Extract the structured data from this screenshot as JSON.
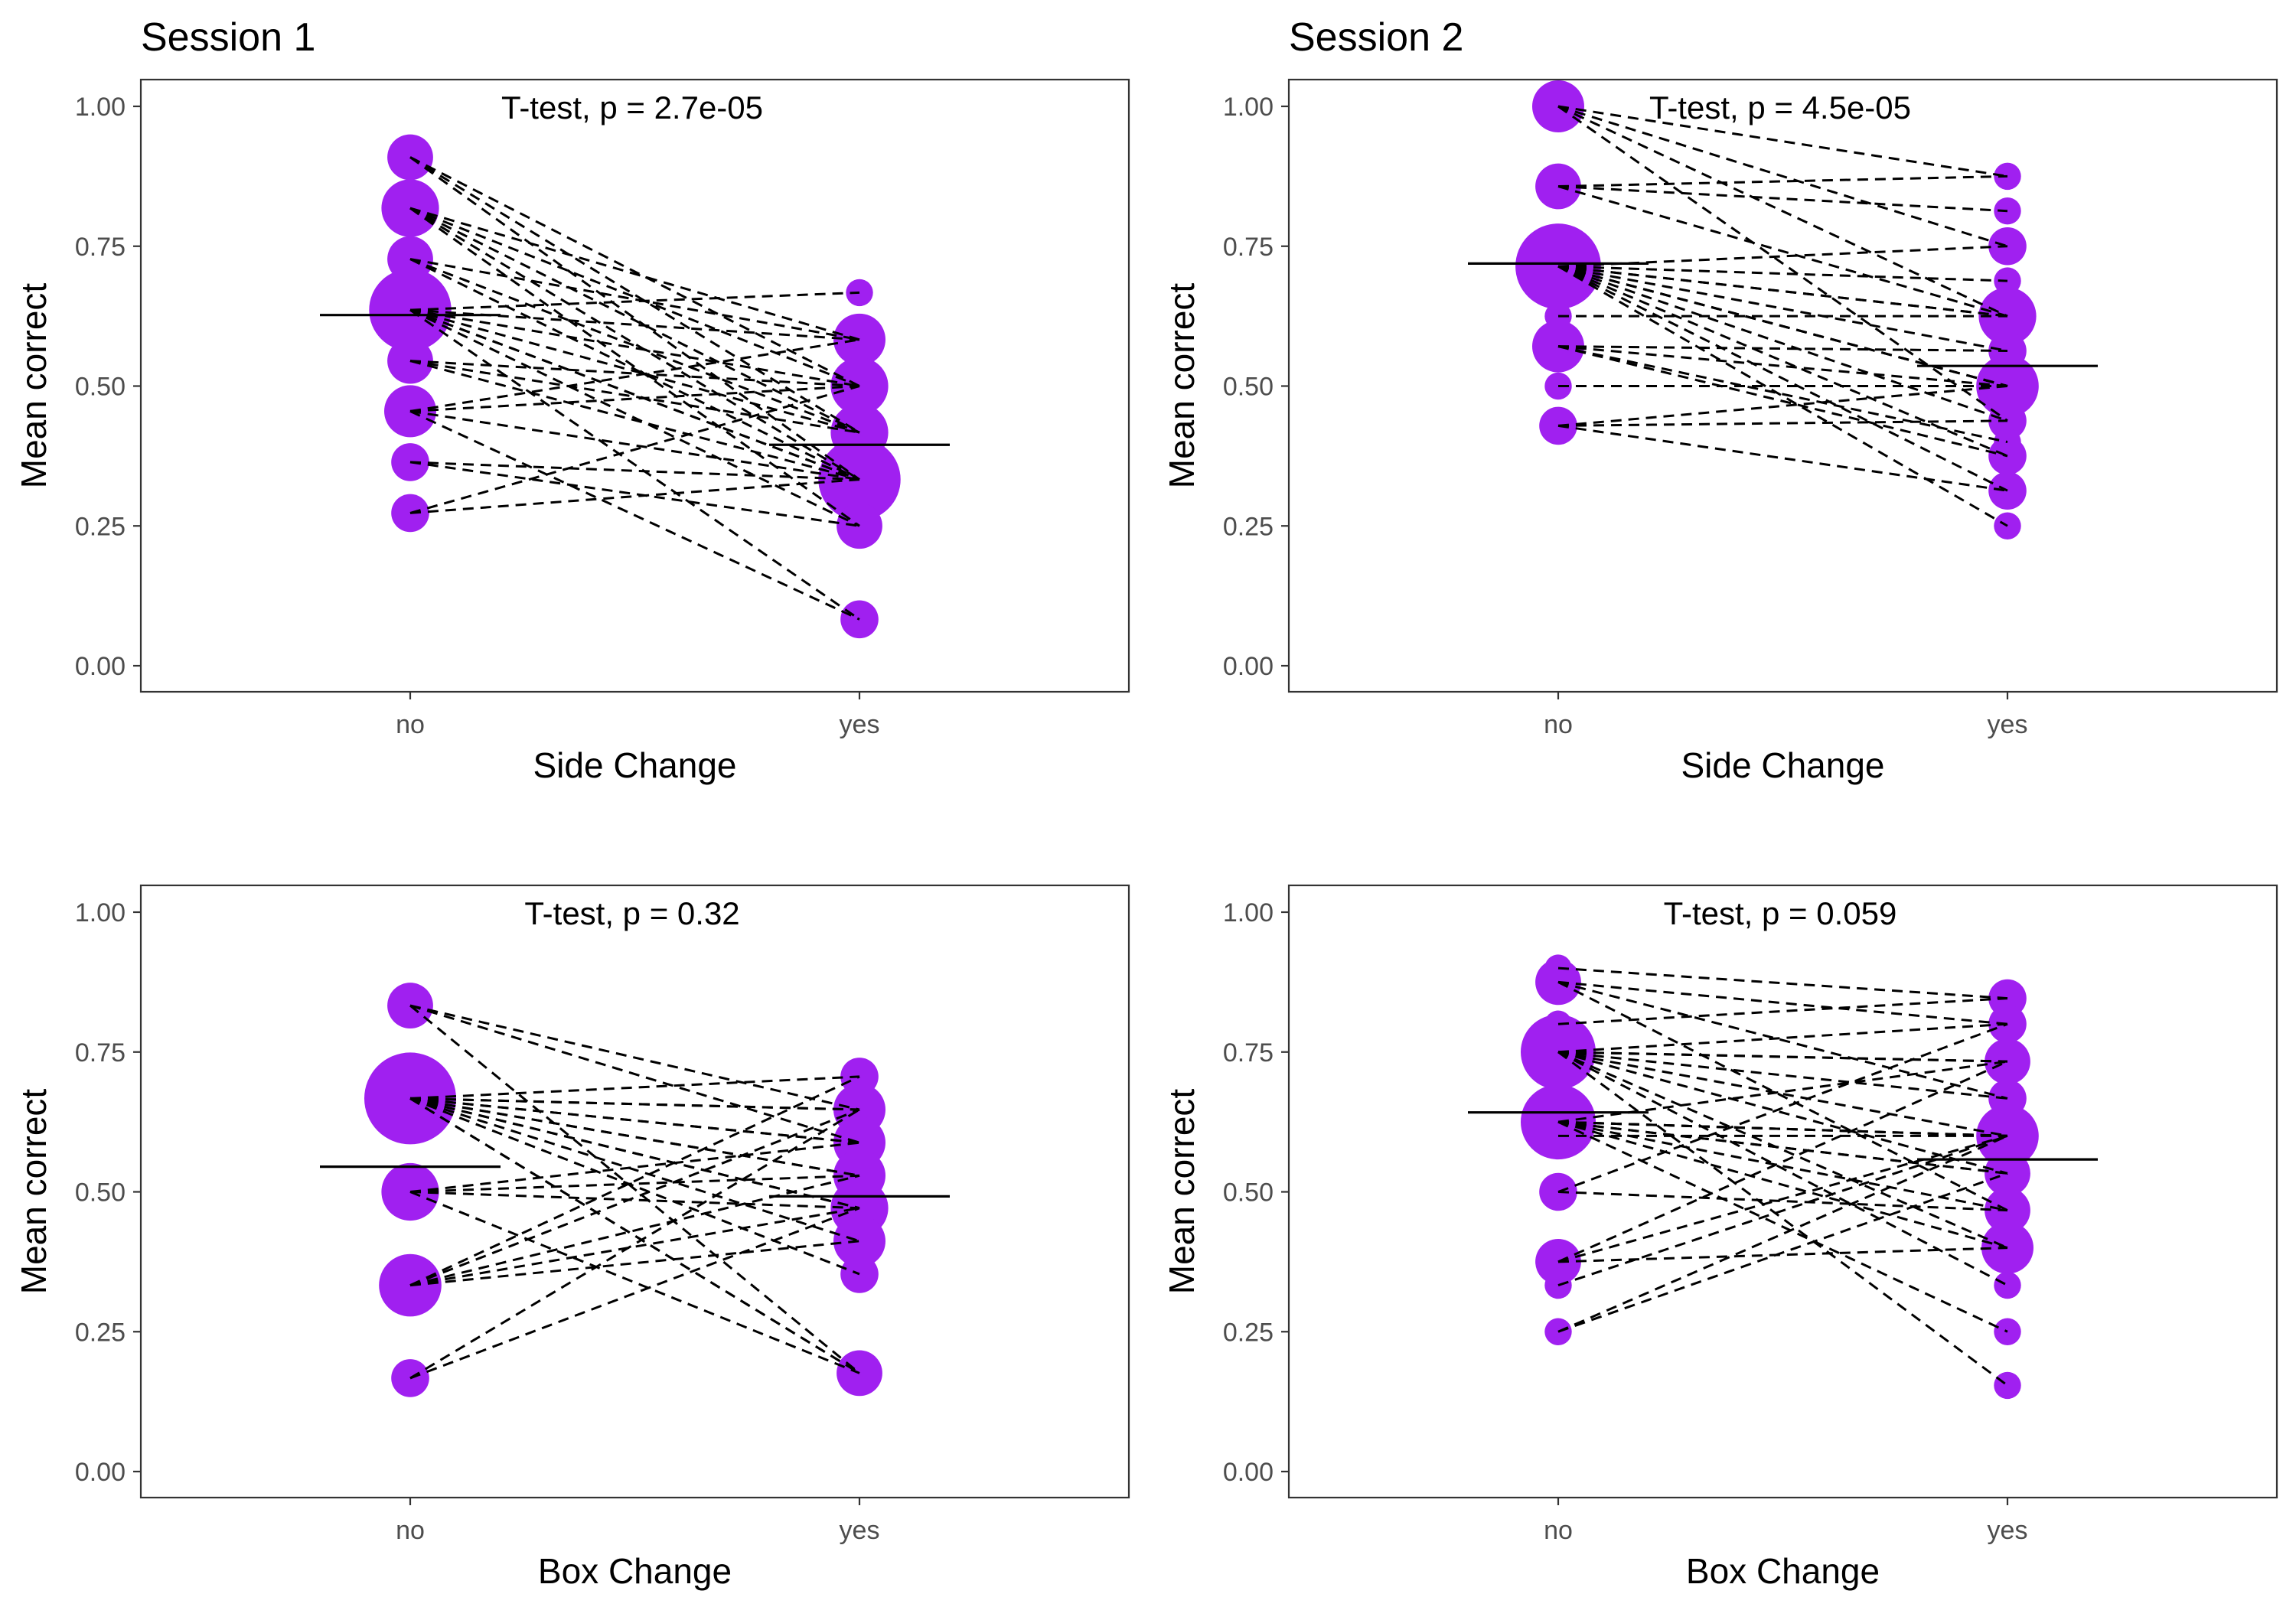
{
  "session_titles": [
    "Session 1",
    "Session 2"
  ],
  "colors": {
    "point": "#a020f0",
    "line": "#000000",
    "frame": "#333333",
    "tick_text": "#4d4d4d"
  },
  "chart_data": [
    {
      "type": "scatter",
      "session": "Session 1",
      "test_label": "T-test, p = 2.7e-05",
      "xlabel": "Side Change",
      "ylabel": "Mean correct",
      "categories": [
        "no",
        "yes"
      ],
      "ylim": [
        0,
        1
      ],
      "yticks": [
        "0.00",
        "0.25",
        "0.50",
        "0.75",
        "1.00"
      ],
      "means": [
        0.627,
        0.395
      ],
      "points": [
        {
          "category": "no",
          "y": 0.909,
          "n": 3
        },
        {
          "category": "no",
          "y": 0.818,
          "n": 5
        },
        {
          "category": "no",
          "y": 0.727,
          "n": 3
        },
        {
          "category": "no",
          "y": 0.636,
          "n": 11
        },
        {
          "category": "no",
          "y": 0.545,
          "n": 3
        },
        {
          "category": "no",
          "y": 0.455,
          "n": 4
        },
        {
          "category": "no",
          "y": 0.364,
          "n": 2
        },
        {
          "category": "no",
          "y": 0.273,
          "n": 2
        },
        {
          "category": "yes",
          "y": 0.667,
          "n": 1
        },
        {
          "category": "yes",
          "y": 0.583,
          "n": 4
        },
        {
          "category": "yes",
          "y": 0.5,
          "n": 5
        },
        {
          "category": "yes",
          "y": 0.417,
          "n": 5
        },
        {
          "category": "yes",
          "y": 0.333,
          "n": 11
        },
        {
          "category": "yes",
          "y": 0.25,
          "n": 3
        },
        {
          "category": "yes",
          "y": 0.083,
          "n": 2
        }
      ],
      "pairs": [
        [
          0.909,
          0.5
        ],
        [
          0.909,
          0.417
        ],
        [
          0.909,
          0.333
        ],
        [
          0.818,
          0.583
        ],
        [
          0.818,
          0.5
        ],
        [
          0.818,
          0.417
        ],
        [
          0.818,
          0.333
        ],
        [
          0.818,
          0.25
        ],
        [
          0.727,
          0.583
        ],
        [
          0.727,
          0.417
        ],
        [
          0.727,
          0.333
        ],
        [
          0.636,
          0.667
        ],
        [
          0.636,
          0.583
        ],
        [
          0.636,
          0.5
        ],
        [
          0.636,
          0.417
        ],
        [
          0.636,
          0.333
        ],
        [
          0.636,
          0.333
        ],
        [
          0.636,
          0.25
        ],
        [
          0.636,
          0.083
        ],
        [
          0.545,
          0.5
        ],
        [
          0.545,
          0.417
        ],
        [
          0.545,
          0.333
        ],
        [
          0.455,
          0.583
        ],
        [
          0.455,
          0.5
        ],
        [
          0.455,
          0.333
        ],
        [
          0.455,
          0.083
        ],
        [
          0.364,
          0.333
        ],
        [
          0.364,
          0.25
        ],
        [
          0.273,
          0.333
        ],
        [
          0.273,
          0.5
        ]
      ]
    },
    {
      "type": "scatter",
      "session": "Session 2",
      "test_label": "T-test, p = 4.5e-05",
      "xlabel": "Side Change",
      "ylabel": "Mean correct",
      "categories": [
        "no",
        "yes"
      ],
      "ylim": [
        0,
        1
      ],
      "yticks": [
        "0.00",
        "0.25",
        "0.50",
        "0.75",
        "1.00"
      ],
      "means": [
        0.719,
        0.536
      ],
      "points": [
        {
          "category": "no",
          "y": 1.0,
          "n": 4
        },
        {
          "category": "no",
          "y": 0.857,
          "n": 3
        },
        {
          "category": "no",
          "y": 0.714,
          "n": 12
        },
        {
          "category": "no",
          "y": 0.625,
          "n": 1
        },
        {
          "category": "no",
          "y": 0.571,
          "n": 4
        },
        {
          "category": "no",
          "y": 0.5,
          "n": 1
        },
        {
          "category": "no",
          "y": 0.429,
          "n": 2
        },
        {
          "category": "yes",
          "y": 0.875,
          "n": 1
        },
        {
          "category": "yes",
          "y": 0.813,
          "n": 1
        },
        {
          "category": "yes",
          "y": 0.75,
          "n": 2
        },
        {
          "category": "yes",
          "y": 0.688,
          "n": 1
        },
        {
          "category": "yes",
          "y": 0.625,
          "n": 5
        },
        {
          "category": "yes",
          "y": 0.563,
          "n": 2
        },
        {
          "category": "yes",
          "y": 0.5,
          "n": 6
        },
        {
          "category": "yes",
          "y": 0.438,
          "n": 2
        },
        {
          "category": "yes",
          "y": 0.375,
          "n": 2
        },
        {
          "category": "yes",
          "y": 0.313,
          "n": 2
        },
        {
          "category": "yes",
          "y": 0.25,
          "n": 1
        },
        {
          "category": "yes",
          "y": 0.4,
          "n": 1
        }
      ],
      "pairs": [
        [
          1.0,
          0.875
        ],
        [
          1.0,
          0.75
        ],
        [
          1.0,
          0.625
        ],
        [
          1.0,
          0.438
        ],
        [
          0.857,
          0.875
        ],
        [
          0.857,
          0.813
        ],
        [
          0.857,
          0.625
        ],
        [
          0.714,
          0.75
        ],
        [
          0.714,
          0.688
        ],
        [
          0.714,
          0.625
        ],
        [
          0.714,
          0.625
        ],
        [
          0.714,
          0.563
        ],
        [
          0.714,
          0.5
        ],
        [
          0.714,
          0.5
        ],
        [
          0.714,
          0.438
        ],
        [
          0.714,
          0.375
        ],
        [
          0.714,
          0.313
        ],
        [
          0.714,
          0.25
        ],
        [
          0.714,
          0.5
        ],
        [
          0.625,
          0.625
        ],
        [
          0.571,
          0.563
        ],
        [
          0.571,
          0.5
        ],
        [
          0.571,
          0.4
        ],
        [
          0.571,
          0.375
        ],
        [
          0.5,
          0.5
        ],
        [
          0.429,
          0.5
        ],
        [
          0.429,
          0.438
        ],
        [
          0.429,
          0.313
        ]
      ]
    },
    {
      "type": "scatter",
      "session": "Session 1",
      "test_label": "T-test, p = 0.32",
      "xlabel": "Box Change",
      "ylabel": "Mean correct",
      "categories": [
        "no",
        "yes"
      ],
      "ylim": [
        0,
        1
      ],
      "yticks": [
        "0.00",
        "0.25",
        "0.50",
        "0.75",
        "1.00"
      ],
      "means": [
        0.545,
        0.492
      ],
      "points": [
        {
          "category": "no",
          "y": 0.833,
          "n": 3
        },
        {
          "category": "no",
          "y": 0.667,
          "n": 14
        },
        {
          "category": "no",
          "y": 0.5,
          "n": 5
        },
        {
          "category": "no",
          "y": 0.333,
          "n": 6
        },
        {
          "category": "no",
          "y": 0.167,
          "n": 2
        },
        {
          "category": "yes",
          "y": 0.706,
          "n": 2
        },
        {
          "category": "yes",
          "y": 0.647,
          "n": 4
        },
        {
          "category": "yes",
          "y": 0.588,
          "n": 4
        },
        {
          "category": "yes",
          "y": 0.529,
          "n": 4
        },
        {
          "category": "yes",
          "y": 0.471,
          "n": 5
        },
        {
          "category": "yes",
          "y": 0.412,
          "n": 4
        },
        {
          "category": "yes",
          "y": 0.353,
          "n": 2
        },
        {
          "category": "yes",
          "y": 0.176,
          "n": 3
        }
      ],
      "pairs": [
        [
          0.833,
          0.647
        ],
        [
          0.833,
          0.588
        ],
        [
          0.833,
          0.176
        ],
        [
          0.667,
          0.706
        ],
        [
          0.667,
          0.647
        ],
        [
          0.667,
          0.647
        ],
        [
          0.667,
          0.588
        ],
        [
          0.667,
          0.588
        ],
        [
          0.667,
          0.529
        ],
        [
          0.667,
          0.529
        ],
        [
          0.667,
          0.471
        ],
        [
          0.667,
          0.471
        ],
        [
          0.667,
          0.412
        ],
        [
          0.667,
          0.353
        ],
        [
          0.667,
          0.176
        ],
        [
          0.667,
          0.176
        ],
        [
          0.5,
          0.588
        ],
        [
          0.5,
          0.529
        ],
        [
          0.5,
          0.471
        ],
        [
          0.5,
          0.176
        ],
        [
          0.333,
          0.706
        ],
        [
          0.333,
          0.647
        ],
        [
          0.333,
          0.529
        ],
        [
          0.333,
          0.471
        ],
        [
          0.333,
          0.412
        ],
        [
          0.167,
          0.647
        ],
        [
          0.167,
          0.471
        ]
      ]
    },
    {
      "type": "scatter",
      "session": "Session 2",
      "test_label": "T-test, p = 0.059",
      "xlabel": "Box Change",
      "ylabel": "Mean correct",
      "categories": [
        "no",
        "yes"
      ],
      "ylim": [
        0,
        1
      ],
      "yticks": [
        "0.00",
        "0.25",
        "0.50",
        "0.75",
        "1.00"
      ],
      "means": [
        0.642,
        0.558
      ],
      "points": [
        {
          "category": "no",
          "y": 0.9,
          "n": 1
        },
        {
          "category": "no",
          "y": 0.875,
          "n": 3
        },
        {
          "category": "no",
          "y": 0.8,
          "n": 1
        },
        {
          "category": "no",
          "y": 0.75,
          "n": 9
        },
        {
          "category": "no",
          "y": 0.625,
          "n": 9
        },
        {
          "category": "no",
          "y": 0.6,
          "n": 1
        },
        {
          "category": "no",
          "y": 0.5,
          "n": 2
        },
        {
          "category": "no",
          "y": 0.375,
          "n": 3
        },
        {
          "category": "no",
          "y": 0.333,
          "n": 1
        },
        {
          "category": "no",
          "y": 0.25,
          "n": 1
        },
        {
          "category": "yes",
          "y": 0.846,
          "n": 2
        },
        {
          "category": "yes",
          "y": 0.8,
          "n": 2
        },
        {
          "category": "yes",
          "y": 0.733,
          "n": 3
        },
        {
          "category": "yes",
          "y": 0.667,
          "n": 2
        },
        {
          "category": "yes",
          "y": 0.6,
          "n": 6
        },
        {
          "category": "yes",
          "y": 0.533,
          "n": 3
        },
        {
          "category": "yes",
          "y": 0.467,
          "n": 3
        },
        {
          "category": "yes",
          "y": 0.4,
          "n": 4
        },
        {
          "category": "yes",
          "y": 0.333,
          "n": 1
        },
        {
          "category": "yes",
          "y": 0.25,
          "n": 1
        },
        {
          "category": "yes",
          "y": 0.154,
          "n": 1
        }
      ],
      "pairs": [
        [
          0.9,
          0.846
        ],
        [
          0.875,
          0.8
        ],
        [
          0.875,
          0.667
        ],
        [
          0.875,
          0.467
        ],
        [
          0.8,
          0.846
        ],
        [
          0.75,
          0.8
        ],
        [
          0.75,
          0.733
        ],
        [
          0.75,
          0.733
        ],
        [
          0.75,
          0.667
        ],
        [
          0.75,
          0.6
        ],
        [
          0.75,
          0.533
        ],
        [
          0.75,
          0.4
        ],
        [
          0.75,
          0.333
        ],
        [
          0.75,
          0.154
        ],
        [
          0.625,
          0.733
        ],
        [
          0.625,
          0.6
        ],
        [
          0.625,
          0.6
        ],
        [
          0.625,
          0.533
        ],
        [
          0.625,
          0.467
        ],
        [
          0.625,
          0.4
        ],
        [
          0.625,
          0.25
        ],
        [
          0.625,
          0.6
        ],
        [
          0.625,
          0.533
        ],
        [
          0.6,
          0.6
        ],
        [
          0.5,
          0.8
        ],
        [
          0.5,
          0.467
        ],
        [
          0.375,
          0.733
        ],
        [
          0.375,
          0.6
        ],
        [
          0.375,
          0.4
        ],
        [
          0.333,
          0.6
        ],
        [
          0.25,
          0.6
        ],
        [
          0.25,
          0.533
        ]
      ]
    }
  ]
}
